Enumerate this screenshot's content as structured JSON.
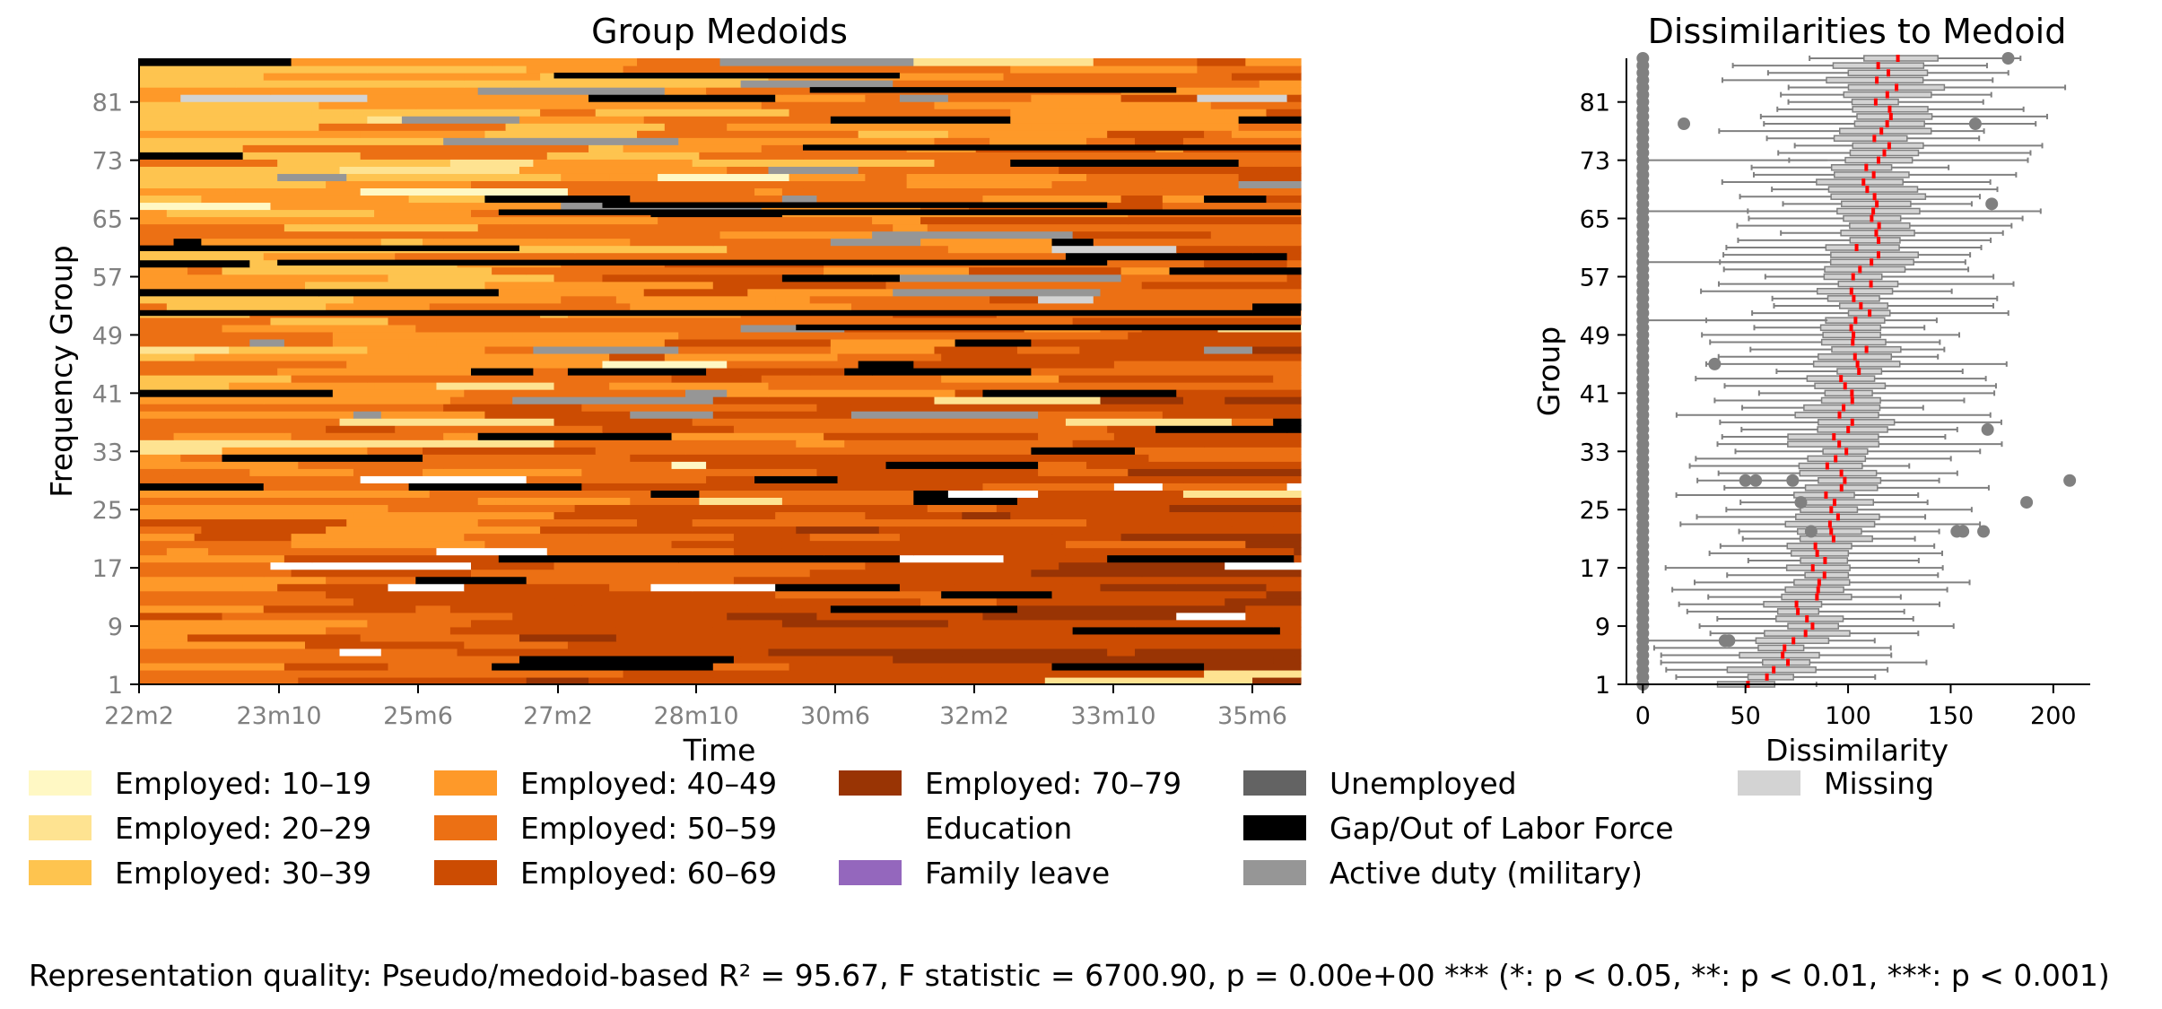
{
  "chart_data": [
    {
      "type": "heatmap",
      "title": "Group Medoids",
      "xlabel": "Time",
      "ylabel": "Frequency Group",
      "x_tick_labels": [
        "22m2",
        "23m10",
        "25m6",
        "27m2",
        "28m10",
        "30m6",
        "32m2",
        "33m10",
        "35m6"
      ],
      "y_tick_labels": [
        "1",
        "9",
        "17",
        "25",
        "33",
        "41",
        "49",
        "57",
        "65",
        "73",
        "81"
      ],
      "ylim": [
        1,
        87
      ],
      "n_groups": 87,
      "n_timepoints": 168,
      "states": [
        "Employed: 10–19",
        "Employed: 20–29",
        "Employed: 30–39",
        "Employed: 40–49",
        "Employed: 50–59",
        "Employed: 60–69",
        "Employed: 70–79",
        "Education",
        "Family leave",
        "Unemployed",
        "Gap/Out of Labor Force",
        "Active duty (military)",
        "Missing"
      ]
    },
    {
      "type": "box",
      "title": "Dissimilarities to Medoid",
      "xlabel": "Dissimilarity",
      "ylabel": "Group",
      "xlim": [
        -8,
        218
      ],
      "ylim": [
        1,
        87
      ],
      "x_ticks": [
        0,
        50,
        100,
        150,
        200
      ],
      "y_tick_labels": [
        "1",
        "9",
        "17",
        "25",
        "33",
        "41",
        "49",
        "57",
        "65",
        "73",
        "81"
      ],
      "n_groups": 87,
      "median_bottom": 55,
      "median_top": 119,
      "median_color": "#ff0000",
      "outliers_at_zero": true,
      "extra_outliers": [
        {
          "group": 87,
          "x": 178
        },
        {
          "group": 78,
          "x": 20
        },
        {
          "group": 78,
          "x": 162
        },
        {
          "group": 67,
          "x": 170
        },
        {
          "group": 45,
          "x": 35
        },
        {
          "group": 36,
          "x": 168
        },
        {
          "group": 29,
          "x": 50
        },
        {
          "group": 29,
          "x": 55
        },
        {
          "group": 29,
          "x": 73
        },
        {
          "group": 29,
          "x": 208
        },
        {
          "group": 26,
          "x": 187
        },
        {
          "group": 26,
          "x": 77
        },
        {
          "group": 22,
          "x": 82
        },
        {
          "group": 22,
          "x": 153
        },
        {
          "group": 22,
          "x": 156
        },
        {
          "group": 22,
          "x": 166
        },
        {
          "group": 7,
          "x": 40
        },
        {
          "group": 7,
          "x": 42
        }
      ]
    }
  ],
  "legend": [
    {
      "label": "Employed: 10–19",
      "color": "#fff8c4"
    },
    {
      "label": "Employed: 20–29",
      "color": "#fee391"
    },
    {
      "label": "Employed: 30–39",
      "color": "#fec44f"
    },
    {
      "label": "Employed: 40–49",
      "color": "#fe9929"
    },
    {
      "label": "Employed: 50–59",
      "color": "#ec7014"
    },
    {
      "label": "Employed: 60–69",
      "color": "#cc4c02"
    },
    {
      "label": "Employed: 70–79",
      "color": "#993404"
    },
    {
      "label": "Education",
      "color": "#ffffff"
    },
    {
      "label": "Family leave",
      "color": "#9467bd"
    },
    {
      "label": "Unemployed",
      "color": "#636363"
    },
    {
      "label": "Gap/Out of Labor Force",
      "color": "#000000"
    },
    {
      "label": "Active duty (military)",
      "color": "#969696"
    },
    {
      "label": "Missing",
      "color": "#d3d3d3"
    }
  ],
  "footer": "Representation quality: Pseudo/medoid-based R² = 95.67, F statistic = 6700.90, p = 0.00e+00 *** (*: p < 0.05, **: p < 0.01, ***: p < 0.001)"
}
